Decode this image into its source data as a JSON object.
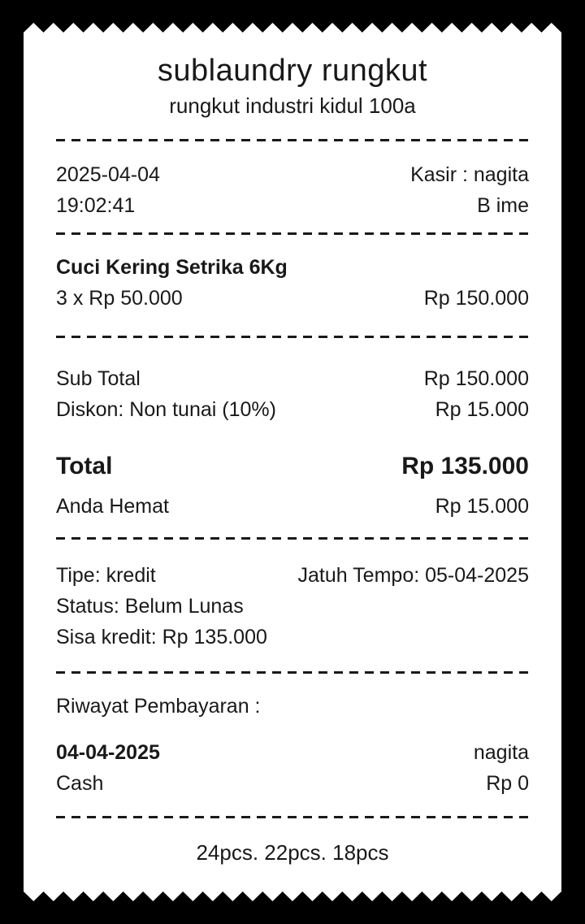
{
  "receipt": {
    "store_name": "sublaundry rungkut",
    "store_address": "rungkut industri kidul 100a",
    "info": {
      "date": "2025-04-04",
      "time": "19:02:41",
      "cashier": "Kasir : nagita",
      "customer": "B ime"
    },
    "items": [
      {
        "name": "Cuci Kering Setrika 6Kg",
        "qty_price": "3 x Rp 50.000",
        "amount": "Rp 150.000"
      }
    ],
    "summary": {
      "subtotal_label": "Sub Total",
      "subtotal_value": "Rp 150.000",
      "discount_label": "Diskon: Non tunai (10%)",
      "discount_value": "Rp 15.000",
      "total_label": "Total",
      "total_value": "Rp 135.000",
      "savings_label": "Anda Hemat",
      "savings_value": "Rp 15.000"
    },
    "credit": {
      "type": "Tipe: kredit",
      "due": "Jatuh Tempo: 05-04-2025",
      "status": "Status: Belum Lunas",
      "remaining": "Sisa kredit: Rp 135.000"
    },
    "payment_history": {
      "heading": "Riwayat Pembayaran :",
      "entries": [
        {
          "date": "04-04-2025",
          "by": "nagita",
          "method": "Cash",
          "amount": "Rp 0"
        }
      ]
    },
    "footer_note": "24pcs. 22pcs. 18pcs"
  },
  "colors": {
    "paper": "#ffffff",
    "background": "#000000",
    "ink": "#191919"
  }
}
